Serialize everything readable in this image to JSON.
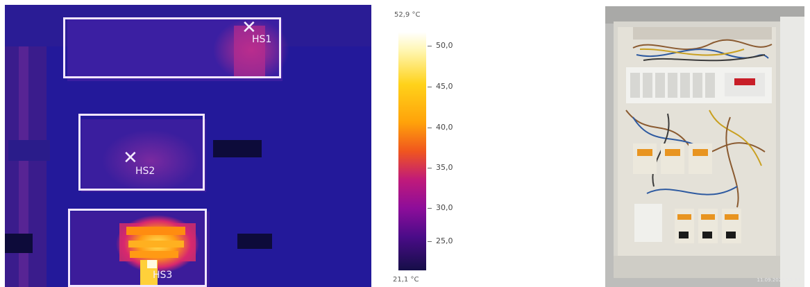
{
  "thermal": {
    "hotspots": [
      {
        "label": "HS1"
      },
      {
        "label": "HS2"
      },
      {
        "label": "HS3"
      }
    ]
  },
  "scale": {
    "max": "52,9 °C",
    "min": "21,1 °C",
    "ticks": [
      "50,0",
      "45,0",
      "40,0",
      "35,0",
      "30,0",
      "25,0"
    ]
  },
  "photo": {
    "stamp": "11.09.2023 10:45"
  }
}
